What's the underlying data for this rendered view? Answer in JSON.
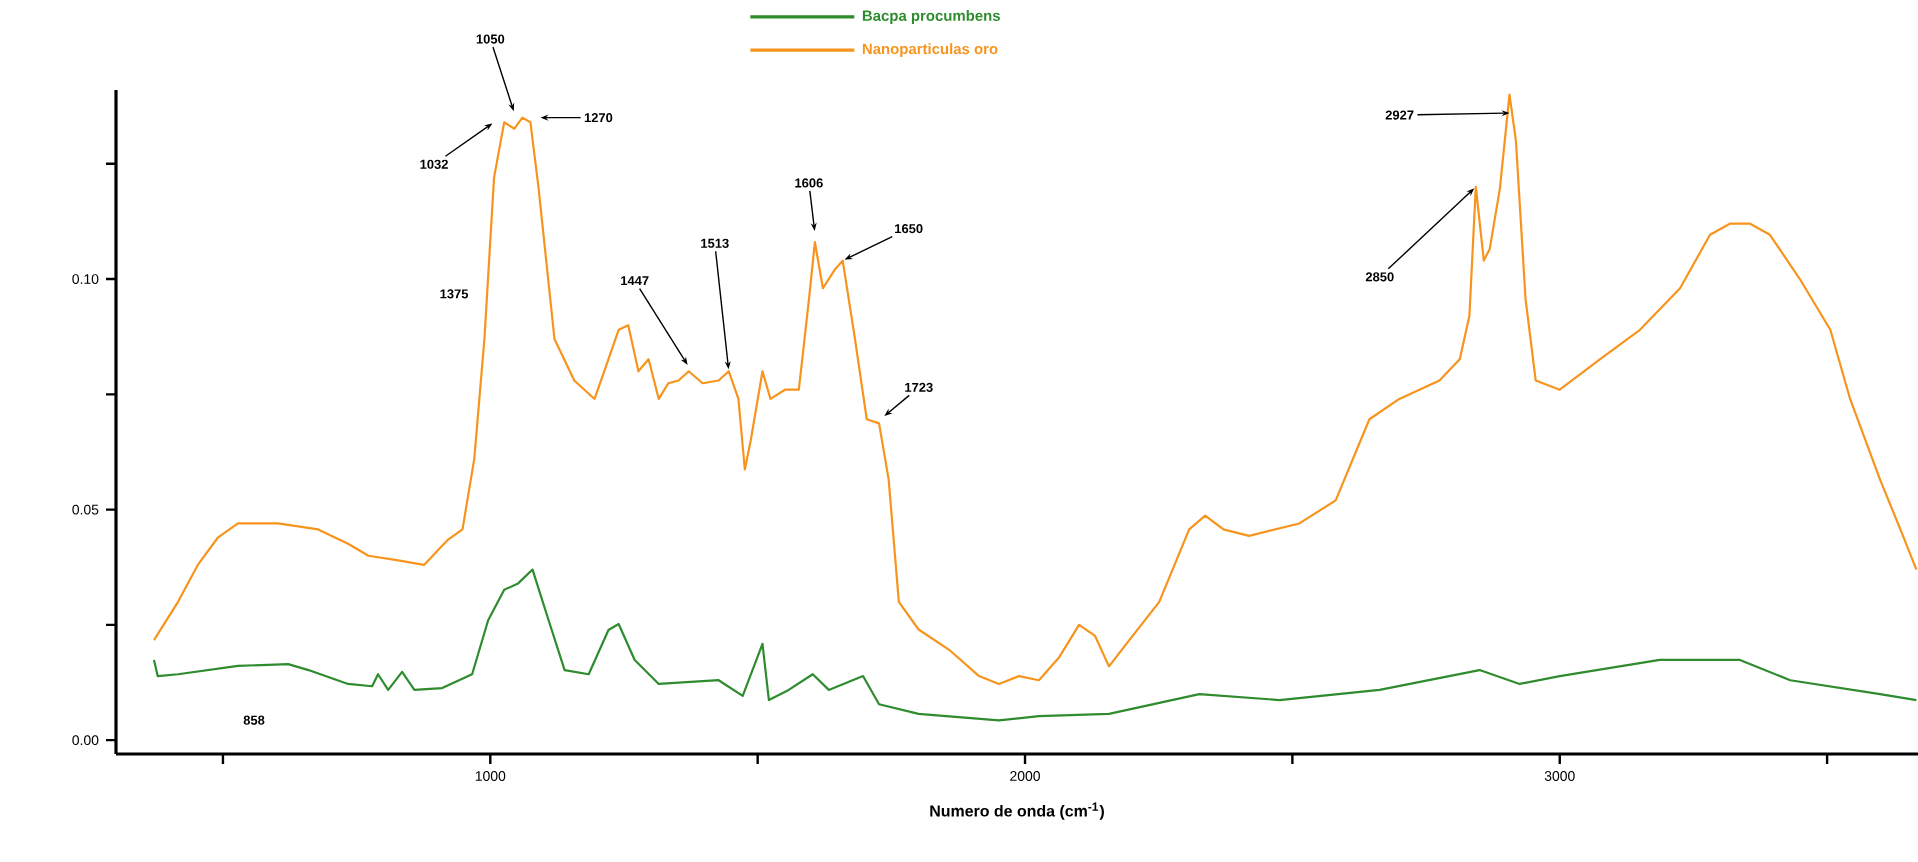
{
  "chart_data": {
    "type": "line",
    "xlabel": "Numero de onda (cm$^{-1}$)",
    "xlim": [
      300,
      3670
    ],
    "ylim": [
      -0.003,
      0.141
    ],
    "xticks": [
      {
        "value": 500,
        "label": null
      },
      1000,
      {
        "value": 1500,
        "label": null
      },
      2000,
      {
        "value": 2500,
        "label": null
      },
      3000,
      {
        "value": 3500,
        "label": null
      }
    ],
    "yticks": [
      {
        "value": 0,
        "label": "0.00"
      },
      {
        "value": 0.025,
        "label": null
      },
      {
        "value": 0.05,
        "label": "0.05"
      },
      {
        "value": 0.075,
        "label": null
      },
      {
        "value": 0.1,
        "label": "0.10"
      },
      {
        "value": 0.125,
        "label": null
      }
    ],
    "grid": false,
    "legend": "top",
    "marker": "none",
    "line_style": "solid",
    "series": [
      {
        "name": "Bacpa procumbens",
        "color": "#2e8b2e",
        "x": [
          371,
          378,
          416,
          528,
          622,
          660,
          734,
          779,
          790,
          809,
          835,
          858,
          910,
          966,
          996,
          1026,
          1052,
          1079,
          1109,
          1139,
          1184,
          1221,
          1240,
          1270,
          1315,
          1427,
          1472,
          1509,
          1521,
          1558,
          1603,
          1633,
          1697,
          1727,
          1801,
          1951,
          2026,
          2157,
          2326,
          2476,
          2663,
          2850,
          2925,
          3000,
          3187,
          3337,
          3431,
          3599,
          3667
        ],
        "values": [
          0.0174,
          0.0139,
          0.0143,
          0.0161,
          0.0165,
          0.0152,
          0.0122,
          0.0117,
          0.0143,
          0.0109,
          0.0148,
          0.0109,
          0.0113,
          0.0143,
          0.026,
          0.0326,
          0.034,
          0.037,
          0.026,
          0.0152,
          0.0143,
          0.0239,
          0.0252,
          0.0174,
          0.0122,
          0.013,
          0.0096,
          0.0209,
          0.0087,
          0.0109,
          0.0143,
          0.0109,
          0.0139,
          0.0078,
          0.0057,
          0.0043,
          0.0052,
          0.0057,
          0.01,
          0.0087,
          0.0109,
          0.0152,
          0.0122,
          0.0139,
          0.0174,
          0.0174,
          0.013,
          0.01,
          0.0087
        ]
      },
      {
        "name": "Nanoparticulas oro",
        "color": "#f7941d",
        "x": [
          371,
          416,
          453,
          491,
          528,
          603,
          678,
          734,
          772,
          828,
          876,
          921,
          948,
          970,
          989,
          1007,
          1026,
          1045,
          1060,
          1075,
          1090,
          1120,
          1157,
          1195,
          1213,
          1240,
          1258,
          1277,
          1296,
          1315,
          1333,
          1352,
          1371,
          1397,
          1427,
          1446,
          1464,
          1476,
          1487,
          1509,
          1524,
          1551,
          1577,
          1596,
          1607,
          1622,
          1644,
          1659,
          1682,
          1704,
          1727,
          1745,
          1764,
          1801,
          1858,
          1914,
          1951,
          1989,
          2026,
          2064,
          2101,
          2131,
          2157,
          2195,
          2251,
          2307,
          2337,
          2371,
          2419,
          2513,
          2581,
          2644,
          2700,
          2775,
          2813,
          2831,
          2843,
          2858,
          2869,
          2888,
          2906,
          2918,
          2936,
          2955,
          3000,
          3075,
          3150,
          3225,
          3281,
          3318,
          3356,
          3393,
          3449,
          3506,
          3543,
          3599,
          3637,
          3667
        ],
        "values": [
          0.0217,
          0.03,
          0.038,
          0.044,
          0.047,
          0.047,
          0.0457,
          0.0426,
          0.04,
          0.039,
          0.038,
          0.0435,
          0.0457,
          0.061,
          0.087,
          0.122,
          0.134,
          0.1326,
          0.135,
          0.134,
          0.12,
          0.087,
          0.078,
          0.074,
          0.08,
          0.089,
          0.09,
          0.08,
          0.0826,
          0.074,
          0.0774,
          0.078,
          0.08,
          0.0774,
          0.078,
          0.08,
          0.074,
          0.0587,
          0.065,
          0.08,
          0.074,
          0.076,
          0.076,
          0.0957,
          0.108,
          0.098,
          0.102,
          0.104,
          0.087,
          0.0696,
          0.0687,
          0.0565,
          0.03,
          0.024,
          0.0196,
          0.0139,
          0.0122,
          0.0139,
          0.013,
          0.018,
          0.025,
          0.0226,
          0.016,
          0.0217,
          0.03,
          0.0457,
          0.0487,
          0.0457,
          0.0443,
          0.047,
          0.052,
          0.0696,
          0.074,
          0.078,
          0.0826,
          0.092,
          0.12,
          0.104,
          0.1065,
          0.1196,
          0.14,
          0.13,
          0.0957,
          0.078,
          0.076,
          0.0826,
          0.089,
          0.098,
          0.1096,
          0.112,
          0.112,
          0.1096,
          0.1,
          0.089,
          0.074,
          0.0565,
          0.0457,
          0.037
        ]
      }
    ],
    "annotations": [
      "858",
      {
        "text": "1032",
        "x": 1007,
        "y": 0.134
      },
      {
        "text": "1050",
        "x": 1045,
        "y": 0.136
      },
      {
        "text": "1270",
        "x": 1090,
        "y": 0.135
      },
      "1375",
      {
        "text": "1447",
        "x": 1371,
        "y": 0.081
      },
      {
        "text": "1513",
        "x": 1446,
        "y": 0.08
      },
      {
        "text": "1606",
        "x": 1607,
        "y": 0.11
      },
      {
        "text": "1650",
        "x": 1659,
        "y": 0.104
      },
      {
        "text": "1723",
        "x": 1734,
        "y": 0.07
      },
      {
        "text": "2850",
        "x": 2843,
        "y": 0.12
      },
      {
        "text": "2927",
        "x": 2910,
        "y": 0.136
      }
    ]
  }
}
